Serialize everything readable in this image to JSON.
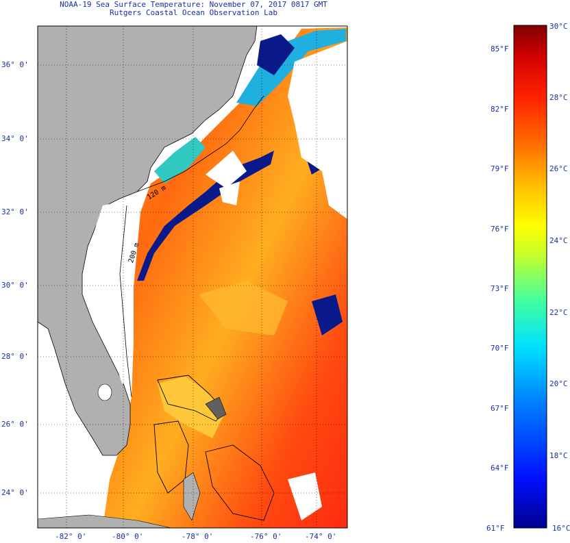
{
  "title": {
    "line1": "NOAA-19 Sea Surface Temperature:  November 07, 2017 0817 GMT",
    "line2": "Rutgers Coastal Ocean Observation Lab"
  },
  "map": {
    "lat_labels": [
      "36° 0'",
      "34° 0'",
      "32° 0'",
      "30° 0'",
      "28° 0'",
      "26° 0'",
      "24° 0'"
    ],
    "lon_labels": [
      "-82° 0'",
      "-80° 0'",
      "-78° 0'",
      "-76° 0'",
      "-74° 0'"
    ],
    "isobath_labels": [
      "120 m",
      "200 m"
    ],
    "colors": {
      "land": "#b0b0b0",
      "cloud": "#ffffff",
      "cold_cloud_edge": "#0a1a8a",
      "coastline": "#000000"
    }
  },
  "colorbar": {
    "fahrenheit": [
      "85°F",
      "82°F",
      "79°F",
      "76°F",
      "73°F",
      "70°F",
      "67°F",
      "64°F",
      "61°F"
    ],
    "celsius": [
      "30°C",
      "28°C",
      "26°C",
      "24°C",
      "22°C",
      "20°C",
      "18°C",
      "16°C"
    ],
    "range_c": [
      16,
      30
    ],
    "stops": [
      "#000090",
      "#0010ff",
      "#0080ff",
      "#00e0ff",
      "#40ffa0",
      "#c0ff30",
      "#ffff00",
      "#ffc000",
      "#ff7000",
      "#ff2000",
      "#d00000",
      "#800000"
    ]
  }
}
